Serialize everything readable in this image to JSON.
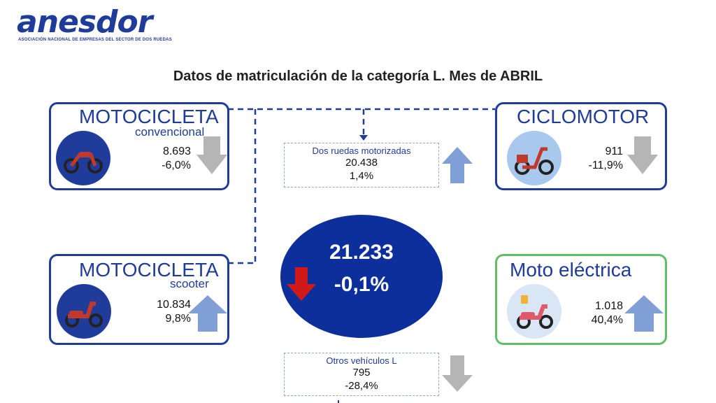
{
  "brand": {
    "logo": "anesdor",
    "tagline": "ASOCIACIÓN NACIONAL DE EMPRESAS DEL SECTOR DE DOS RUEDAS"
  },
  "title": "Datos de matriculación de la categoría L. Mes de ABRIL",
  "moto_convencional": {
    "title": "MOTOCICLETA",
    "subtitle": "convencional",
    "value": "8.693",
    "change": "-6,0%",
    "trend": "down",
    "icon": "motorcycle-icon"
  },
  "moto_scooter": {
    "title": "MOTOCICLETA",
    "subtitle": "scooter",
    "value": "10.834",
    "change": "9,8%",
    "trend": "up",
    "icon": "scooter-icon"
  },
  "ciclomotor": {
    "title": "CICLOMOTOR",
    "value": "911",
    "change": "-11,9%",
    "trend": "down",
    "icon": "moped-icon"
  },
  "moto_electrica": {
    "title": "Moto eléctrica",
    "value": "1.018",
    "change": "40,4%",
    "trend": "up",
    "icon": "electric-scooter-icon"
  },
  "dos_ruedas": {
    "label": "Dos ruedas motorizadas",
    "value": "20.438",
    "change": "1,4%",
    "trend": "up"
  },
  "otros": {
    "label": "Otros vehículos L",
    "value": "795",
    "change": "-28,4%",
    "trend": "down"
  },
  "total": {
    "value": "21.233",
    "change": "-0,1%",
    "trend": "down"
  },
  "colors": {
    "brand_blue": "#1f3c9b",
    "circle_blue": "#0d2f9c",
    "up_arrow": "#7f9fd6",
    "down_arrow": "#b5b5b5",
    "total_down": "#d01a1a",
    "electric_border": "#5fbf62"
  }
}
